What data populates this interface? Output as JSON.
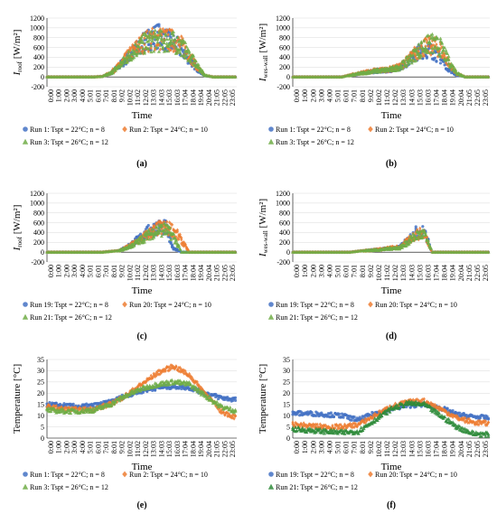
{
  "time_ticks": [
    "0:00",
    "1:00",
    "2:00",
    "3:00",
    "4:00",
    "5:01",
    "6:01",
    "7:01",
    "8:01",
    "9:02",
    "10:02",
    "11:02",
    "12:02",
    "13:03",
    "14:03",
    "15:03",
    "16:03",
    "17:04",
    "18:04",
    "19:04",
    "20:04",
    "21:05",
    "22:05",
    "23:05"
  ],
  "chart_data": [
    {
      "id": "a",
      "caption": "(a)",
      "type": "scatter",
      "ylabel_main": "I",
      "ylabel_sub": "roof",
      "ylabel_unit": " [W/m²]",
      "xlabel": "Time",
      "ylim": [
        -200,
        1200
      ],
      "yticks": [
        -200,
        0,
        200,
        400,
        600,
        800,
        1000,
        1200
      ],
      "grid": true,
      "legend_position": "bottom",
      "series": [
        {
          "name": "Run 1: Tspt = 22°C; n = 8",
          "color": "#4472c4",
          "marker": "circle",
          "x": [
            "0:00",
            "6:00",
            "7:00",
            "8:00",
            "9:00",
            "10:00",
            "11:00",
            "12:00",
            "13:00",
            "14:00",
            "15:00",
            "16:00",
            "17:00",
            "18:00",
            "19:00",
            "20:00",
            "21:00",
            "23:59"
          ],
          "y": [
            0,
            0,
            10,
            80,
            250,
            450,
            650,
            820,
            980,
            1050,
            950,
            850,
            700,
            450,
            200,
            20,
            0,
            0
          ]
        },
        {
          "name": "Run 2: Tspt = 24°C; n = 10",
          "color": "#ed7d31",
          "marker": "diamond",
          "x": [
            "0:00",
            "6:00",
            "7:00",
            "8:00",
            "9:00",
            "10:00",
            "11:00",
            "12:00",
            "13:00",
            "14:00",
            "15:00",
            "16:00",
            "17:00",
            "18:00",
            "19:00",
            "20:00",
            "21:00",
            "23:59"
          ],
          "y": [
            0,
            0,
            10,
            100,
            260,
            480,
            680,
            850,
            950,
            980,
            960,
            920,
            800,
            550,
            250,
            30,
            0,
            0
          ]
        },
        {
          "name": "Run 3: Tspt = 26°C; n = 12",
          "color": "#70ad47",
          "marker": "triangle",
          "x": [
            "0:00",
            "6:00",
            "7:00",
            "8:00",
            "9:00",
            "10:00",
            "11:00",
            "12:00",
            "13:00",
            "14:00",
            "15:00",
            "16:00",
            "17:00",
            "18:00",
            "19:00",
            "20:00",
            "21:00",
            "23:59"
          ],
          "y": [
            0,
            0,
            10,
            90,
            250,
            460,
            660,
            820,
            900,
            920,
            900,
            880,
            780,
            560,
            280,
            40,
            0,
            0
          ]
        }
      ]
    },
    {
      "id": "b",
      "caption": "(b)",
      "type": "scatter",
      "ylabel_main": "I",
      "ylabel_sub": "wes-wall",
      "ylabel_unit": " [W/m²]",
      "xlabel": "Time",
      "ylim": [
        -200,
        1200
      ],
      "yticks": [
        -200,
        0,
        200,
        400,
        600,
        800,
        1000,
        1200
      ],
      "grid": true,
      "legend_position": "bottom",
      "series": [
        {
          "name": "Run 1: Tspt = 22°C; n = 8",
          "color": "#4472c4",
          "marker": "circle",
          "x": [
            "0:00",
            "6:00",
            "8:00",
            "10:00",
            "12:00",
            "13:00",
            "14:00",
            "15:00",
            "16:00",
            "17:00",
            "18:00",
            "19:00",
            "20:00",
            "21:00",
            "23:59"
          ],
          "y": [
            0,
            0,
            80,
            150,
            180,
            250,
            380,
            600,
            700,
            650,
            480,
            200,
            40,
            0,
            0
          ]
        },
        {
          "name": "Run 2: Tspt = 24°C; n = 10",
          "color": "#ed7d31",
          "marker": "diamond",
          "x": [
            "0:00",
            "6:00",
            "8:00",
            "10:00",
            "12:00",
            "13:00",
            "14:00",
            "15:00",
            "16:00",
            "17:00",
            "18:00",
            "19:00",
            "20:00",
            "21:00",
            "23:59"
          ],
          "y": [
            0,
            0,
            90,
            160,
            200,
            260,
            420,
            620,
            750,
            800,
            700,
            350,
            80,
            0,
            0
          ]
        },
        {
          "name": "Run 3: Tspt = 26°C; n = 12",
          "color": "#70ad47",
          "marker": "triangle",
          "x": [
            "0:00",
            "6:00",
            "8:00",
            "10:00",
            "12:00",
            "13:00",
            "14:00",
            "15:00",
            "16:00",
            "17:00",
            "18:00",
            "19:00",
            "20:00",
            "21:00",
            "23:59"
          ],
          "y": [
            0,
            0,
            80,
            150,
            190,
            250,
            400,
            600,
            780,
            850,
            750,
            400,
            100,
            0,
            0
          ]
        }
      ]
    },
    {
      "id": "c",
      "caption": "(c)",
      "type": "scatter",
      "ylabel_main": "I",
      "ylabel_sub": "roof",
      "ylabel_unit": " [W/m²]",
      "xlabel": "Time",
      "ylim": [
        -200,
        1200
      ],
      "yticks": [
        -200,
        0,
        200,
        400,
        600,
        800,
        1000,
        1200
      ],
      "grid": true,
      "legend_position": "bottom",
      "series": [
        {
          "name": "Run 19: Tspt = 22°C; n = 8",
          "color": "#4472c4",
          "marker": "circle",
          "x": [
            "0:00",
            "7:00",
            "9:00",
            "10:00",
            "11:00",
            "12:00",
            "13:00",
            "14:00",
            "15:00",
            "16:00",
            "17:00",
            "23:59"
          ],
          "y": [
            0,
            0,
            30,
            120,
            250,
            400,
            550,
            640,
            620,
            100,
            0,
            0
          ]
        },
        {
          "name": "Run 20: Tspt = 24°C; n = 10",
          "color": "#ed7d31",
          "marker": "diamond",
          "x": [
            "0:00",
            "7:00",
            "9:00",
            "10:00",
            "11:00",
            "12:00",
            "13:00",
            "14:00",
            "15:00",
            "16:00",
            "17:00",
            "18:00",
            "23:59"
          ],
          "y": [
            0,
            0,
            30,
            110,
            220,
            350,
            480,
            600,
            620,
            560,
            300,
            0,
            0
          ]
        },
        {
          "name": "Run 21: Tspt = 26°C; n = 12",
          "color": "#70ad47",
          "marker": "triangle",
          "x": [
            "0:00",
            "7:00",
            "9:00",
            "10:00",
            "11:00",
            "12:00",
            "13:00",
            "14:00",
            "15:00",
            "16:00",
            "17:00",
            "23:59"
          ],
          "y": [
            0,
            0,
            30,
            100,
            200,
            330,
            460,
            560,
            580,
            400,
            0,
            0
          ]
        }
      ]
    },
    {
      "id": "d",
      "caption": "(d)",
      "type": "scatter",
      "ylabel_main": "I",
      "ylabel_sub": "wes-wall",
      "ylabel_unit": " [W/m²]",
      "xlabel": "Time",
      "ylim": [
        -200,
        1200
      ],
      "yticks": [
        -200,
        0,
        200,
        400,
        600,
        800,
        1000,
        1200
      ],
      "grid": true,
      "legend_position": "bottom",
      "series": [
        {
          "name": "Run 19: Tspt = 22°C; n = 8",
          "color": "#4472c4",
          "marker": "circle",
          "x": [
            "0:00",
            "7:00",
            "9:00",
            "11:00",
            "12:00",
            "13:00",
            "14:00",
            "15:00",
            "16:00",
            "17:00",
            "23:59"
          ],
          "y": [
            0,
            0,
            40,
            80,
            100,
            120,
            300,
            500,
            520,
            0,
            0
          ]
        },
        {
          "name": "Run 20: Tspt = 24°C; n = 10",
          "color": "#ed7d31",
          "marker": "diamond",
          "x": [
            "0:00",
            "7:00",
            "9:00",
            "11:00",
            "12:00",
            "13:00",
            "14:00",
            "15:00",
            "16:00",
            "17:00",
            "23:59"
          ],
          "y": [
            0,
            0,
            40,
            80,
            110,
            120,
            280,
            450,
            480,
            0,
            0
          ]
        },
        {
          "name": "Run 21: Tspt = 26°C; n = 12",
          "color": "#70ad47",
          "marker": "triangle",
          "x": [
            "0:00",
            "7:00",
            "9:00",
            "11:00",
            "12:00",
            "13:00",
            "14:00",
            "15:00",
            "16:00",
            "17:00",
            "23:59"
          ],
          "y": [
            0,
            0,
            40,
            70,
            100,
            110,
            250,
            420,
            460,
            0,
            0
          ]
        }
      ]
    },
    {
      "id": "e",
      "caption": "(e)",
      "type": "scatter",
      "ylabel_main": "Temperature [°C]",
      "ylabel_sub": "",
      "ylabel_unit": "",
      "xlabel": "Time",
      "ylim": [
        0,
        35
      ],
      "yticks": [
        0,
        5,
        10,
        15,
        20,
        25,
        30,
        35
      ],
      "grid": true,
      "legend_position": "bottom",
      "series": [
        {
          "name": "Run 1: Tspt = 22°C; n = 8",
          "color": "#4472c4",
          "marker": "circle",
          "x": [
            "0:00",
            "2:00",
            "4:00",
            "6:00",
            "8:00",
            "10:00",
            "12:00",
            "14:00",
            "16:00",
            "18:00",
            "20:00",
            "22:00",
            "23:59"
          ],
          "y": [
            15,
            14.5,
            14,
            14.5,
            16,
            19,
            21,
            22.5,
            23,
            22.5,
            20,
            18,
            17
          ]
        },
        {
          "name": "Run 2: Tspt = 24°C; n = 10",
          "color": "#ed7d31",
          "marker": "diamond",
          "x": [
            "0:00",
            "2:00",
            "4:00",
            "6:00",
            "8:00",
            "10:00",
            "12:00",
            "14:00",
            "16:00",
            "18:00",
            "20:00",
            "22:00",
            "23:59"
          ],
          "y": [
            14,
            13,
            12.5,
            13,
            15,
            19,
            24,
            29,
            32,
            28,
            20,
            12,
            9
          ]
        },
        {
          "name": "Run 3: Tspt = 26°C; n = 12",
          "color": "#70ad47",
          "marker": "triangle",
          "x": [
            "0:00",
            "2:00",
            "4:00",
            "6:00",
            "8:00",
            "10:00",
            "12:00",
            "14:00",
            "16:00",
            "18:00",
            "20:00",
            "22:00",
            "23:59"
          ],
          "y": [
            12.5,
            12,
            12,
            12.5,
            15,
            19,
            22,
            24,
            25,
            24,
            19,
            14,
            12
          ]
        }
      ]
    },
    {
      "id": "f",
      "caption": "(f)",
      "type": "scatter",
      "ylabel_main": "Temperature [°C]",
      "ylabel_sub": "",
      "ylabel_unit": "",
      "xlabel": "Time",
      "ylim": [
        0,
        35
      ],
      "yticks": [
        0,
        5,
        10,
        15,
        20,
        25,
        30,
        35
      ],
      "grid": true,
      "legend_position": "bottom",
      "series": [
        {
          "name": "Run 19: Tspt = 22°C; n = 8",
          "color": "#4472c4",
          "marker": "circle",
          "x": [
            "0:00",
            "2:00",
            "4:00",
            "6:00",
            "8:00",
            "10:00",
            "12:00",
            "14:00",
            "16:00",
            "18:00",
            "20:00",
            "22:00",
            "23:59"
          ],
          "y": [
            11,
            11,
            10.5,
            10,
            8,
            11,
            13,
            14.5,
            15,
            13.5,
            10.5,
            9.5,
            9
          ]
        },
        {
          "name": "Run 20: Tspt = 24°C; n = 10",
          "color": "#ed7d31",
          "marker": "diamond",
          "x": [
            "0:00",
            "2:00",
            "4:00",
            "6:00",
            "8:00",
            "10:00",
            "12:00",
            "14:00",
            "16:00",
            "18:00",
            "20:00",
            "22:00",
            "23:59"
          ],
          "y": [
            6,
            5.5,
            5,
            5,
            6,
            10,
            14,
            16,
            16.5,
            13,
            9,
            7,
            6.5
          ]
        },
        {
          "name": "Run 21: Tspt = 26°C; n = 12",
          "color": "#2e8b3a",
          "marker": "triangle",
          "x": [
            "0:00",
            "2:00",
            "4:00",
            "6:00",
            "8:00",
            "10:00",
            "12:00",
            "14:00",
            "16:00",
            "18:00",
            "20:00",
            "22:00",
            "23:59"
          ],
          "y": [
            4,
            3.5,
            3,
            2.5,
            3,
            8,
            13,
            15.5,
            15,
            10,
            5,
            2,
            1.5
          ]
        }
      ]
    }
  ]
}
